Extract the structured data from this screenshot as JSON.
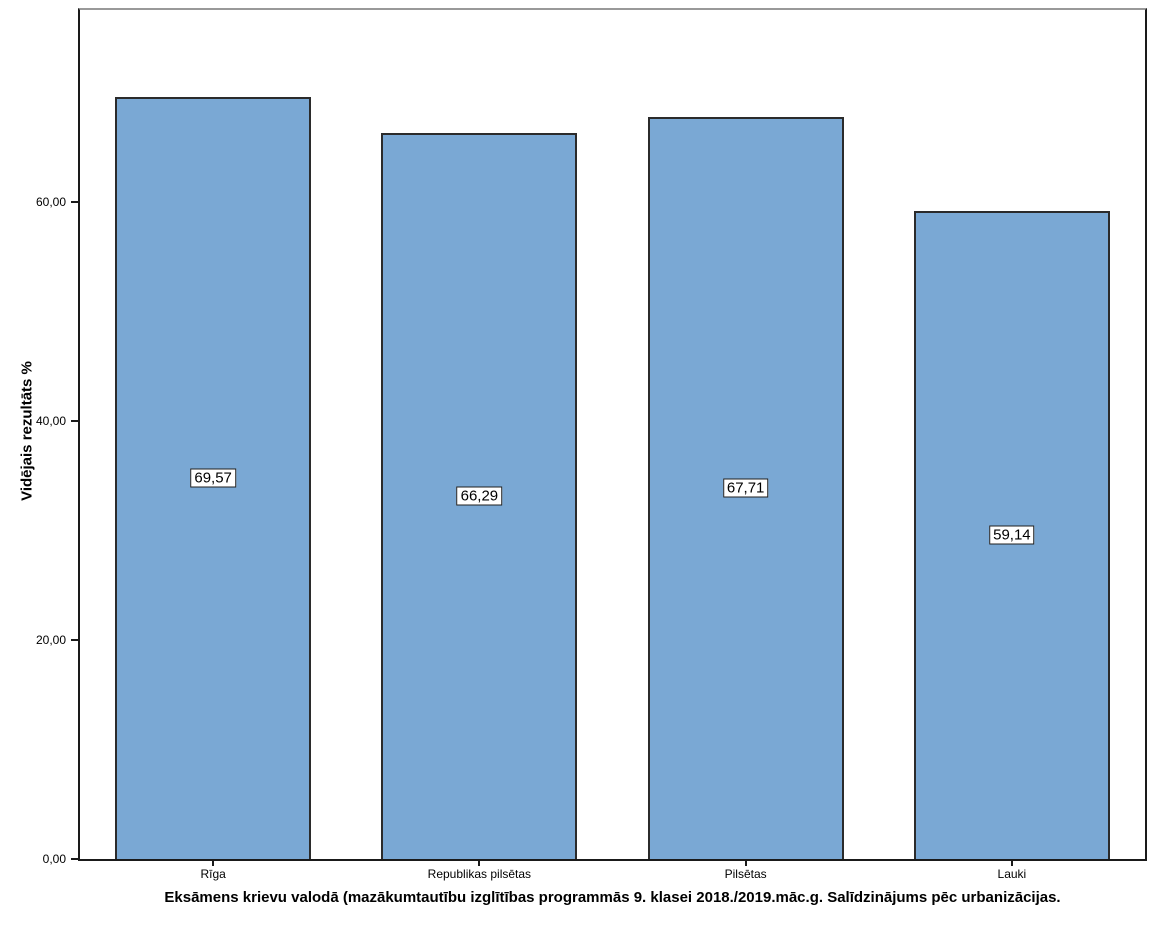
{
  "chart_data": {
    "type": "bar",
    "title": "Eksāmens krievu valodā (mazākumtautību izglītības programmās 9. klasei 2018./2019.māc.g. Salīdzinājums pēc urbanizācijas.",
    "ylabel": "Vidējais rezultāts %",
    "xlabel": "",
    "categories": [
      "Rīga",
      "Republikas pilsētas",
      "Pilsētas",
      "Lauki"
    ],
    "values": [
      69.57,
      66.29,
      67.71,
      59.14
    ],
    "value_labels": [
      "69,57",
      "66,29",
      "67,71",
      "59,14"
    ],
    "ylim": [
      0,
      77.5
    ],
    "yticks": [
      0,
      20,
      40,
      60
    ],
    "ytick_labels": [
      "0,00",
      "20,00",
      "40,00",
      "60,00"
    ],
    "grid": false,
    "legend": "none",
    "colors": {
      "bar_fill": "#7AA8D4",
      "bar_border": "#2B2B2B",
      "axis": "#1A1A1A",
      "frame_top": "#999999",
      "label_box_bg": "#FFFFFF",
      "label_box_border": "#1F1F1F"
    }
  }
}
